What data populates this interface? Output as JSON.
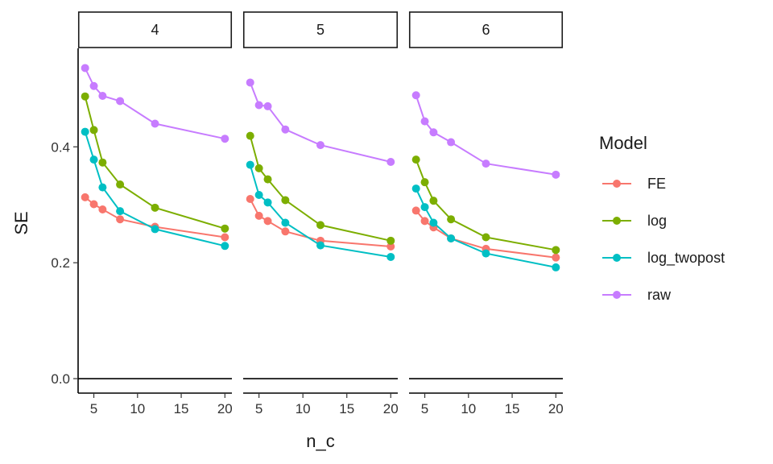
{
  "chart_data": {
    "type": "line",
    "xlabel": "n_c",
    "ylabel": "SE",
    "xlim": [
      3.2,
      20.8
    ],
    "ylim": [
      -0.025,
      0.57
    ],
    "x_ticks": [
      5,
      10,
      15,
      20
    ],
    "x_tick_labels": [
      "5",
      "10",
      "15",
      "20"
    ],
    "y_ticks": [
      0.0,
      0.2,
      0.4
    ],
    "y_tick_labels": [
      "0.0",
      "0.2",
      "0.4"
    ],
    "hline_y": 0,
    "grid": false,
    "legend": {
      "title": "Model",
      "position": "right",
      "entries": [
        "FE",
        "log",
        "log_twopost",
        "raw"
      ]
    },
    "x": [
      4,
      5,
      6,
      8,
      12,
      20
    ],
    "facets": [
      {
        "label": "4",
        "series": [
          {
            "name": "FE",
            "color": "#F8766D",
            "values": [
              0.313,
              0.301,
              0.292,
              0.275,
              0.262,
              0.244
            ]
          },
          {
            "name": "log",
            "color": "#7CAE00",
            "values": [
              0.487,
              0.429,
              0.373,
              0.335,
              0.295,
              0.259
            ]
          },
          {
            "name": "log_twopost",
            "color": "#00BFC4",
            "values": [
              0.426,
              0.378,
              0.33,
              0.289,
              0.258,
              0.229
            ]
          },
          {
            "name": "raw",
            "color": "#C77CFF",
            "values": [
              0.536,
              0.505,
              0.488,
              0.479,
              0.44,
              0.414
            ]
          }
        ]
      },
      {
        "label": "5",
        "series": [
          {
            "name": "FE",
            "color": "#F8766D",
            "values": [
              0.31,
              0.281,
              0.272,
              0.254,
              0.238,
              0.228
            ]
          },
          {
            "name": "log",
            "color": "#7CAE00",
            "values": [
              0.419,
              0.363,
              0.344,
              0.308,
              0.265,
              0.238
            ]
          },
          {
            "name": "log_twopost",
            "color": "#00BFC4",
            "values": [
              0.369,
              0.317,
              0.304,
              0.269,
              0.23,
              0.21
            ]
          },
          {
            "name": "raw",
            "color": "#C77CFF",
            "values": [
              0.511,
              0.472,
              0.47,
              0.43,
              0.403,
              0.374
            ]
          }
        ]
      },
      {
        "label": "6",
        "series": [
          {
            "name": "FE",
            "color": "#F8766D",
            "values": [
              0.29,
              0.272,
              0.261,
              0.242,
              0.224,
              0.209
            ]
          },
          {
            "name": "log",
            "color": "#7CAE00",
            "values": [
              0.378,
              0.339,
              0.307,
              0.275,
              0.244,
              0.222
            ]
          },
          {
            "name": "log_twopost",
            "color": "#00BFC4",
            "values": [
              0.328,
              0.296,
              0.269,
              0.242,
              0.216,
              0.192
            ]
          },
          {
            "name": "raw",
            "color": "#C77CFF",
            "values": [
              0.489,
              0.444,
              0.425,
              0.408,
              0.371,
              0.352
            ]
          }
        ]
      }
    ]
  }
}
